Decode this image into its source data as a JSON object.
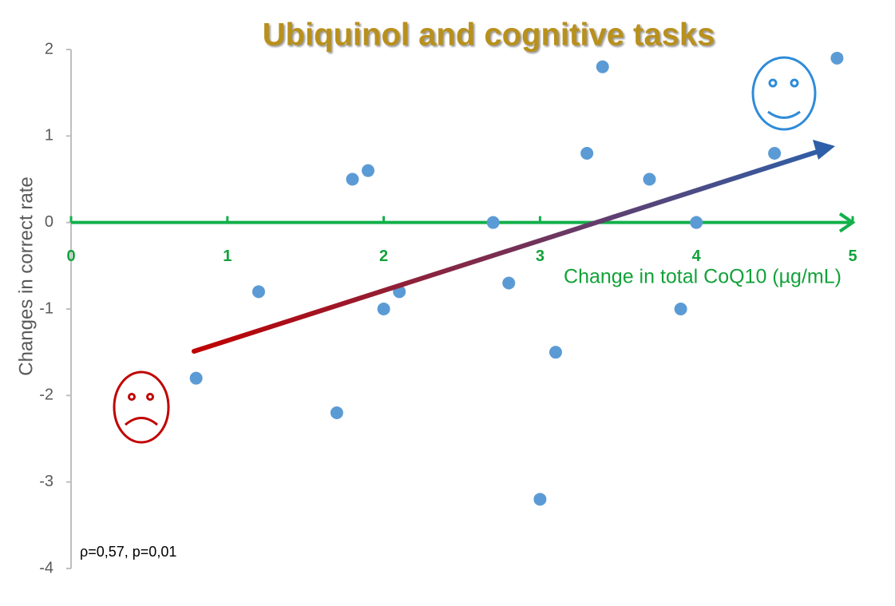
{
  "chart_data": {
    "type": "scatter",
    "title": "Ubiquinol and cognitive tasks",
    "x_label": "Change in total CoQ10 (µg/mL)",
    "y_label": "Changes in correct rate",
    "annotation": "ρ=0,57, p=0,01",
    "x": [
      0.8,
      1.2,
      1.7,
      1.8,
      1.9,
      2.0,
      2.1,
      2.7,
      2.8,
      3.0,
      3.1,
      3.3,
      3.4,
      3.7,
      3.9,
      4.0,
      4.5,
      4.9
    ],
    "values": [
      -1.8,
      -0.8,
      -2.2,
      0.5,
      0.6,
      -1.0,
      -0.8,
      0,
      -0.7,
      -3.2,
      -1.5,
      0.8,
      1.8,
      0.5,
      -1.0,
      0,
      0.8,
      1.9
    ],
    "color": "#5b9bd5",
    "xlim": [
      0,
      5
    ],
    "ylim": [
      -4,
      2
    ],
    "xticks": [
      0,
      1,
      2,
      3,
      4,
      5
    ],
    "yticks": [
      -4,
      -3,
      -2,
      -1,
      0,
      1,
      2
    ]
  }
}
